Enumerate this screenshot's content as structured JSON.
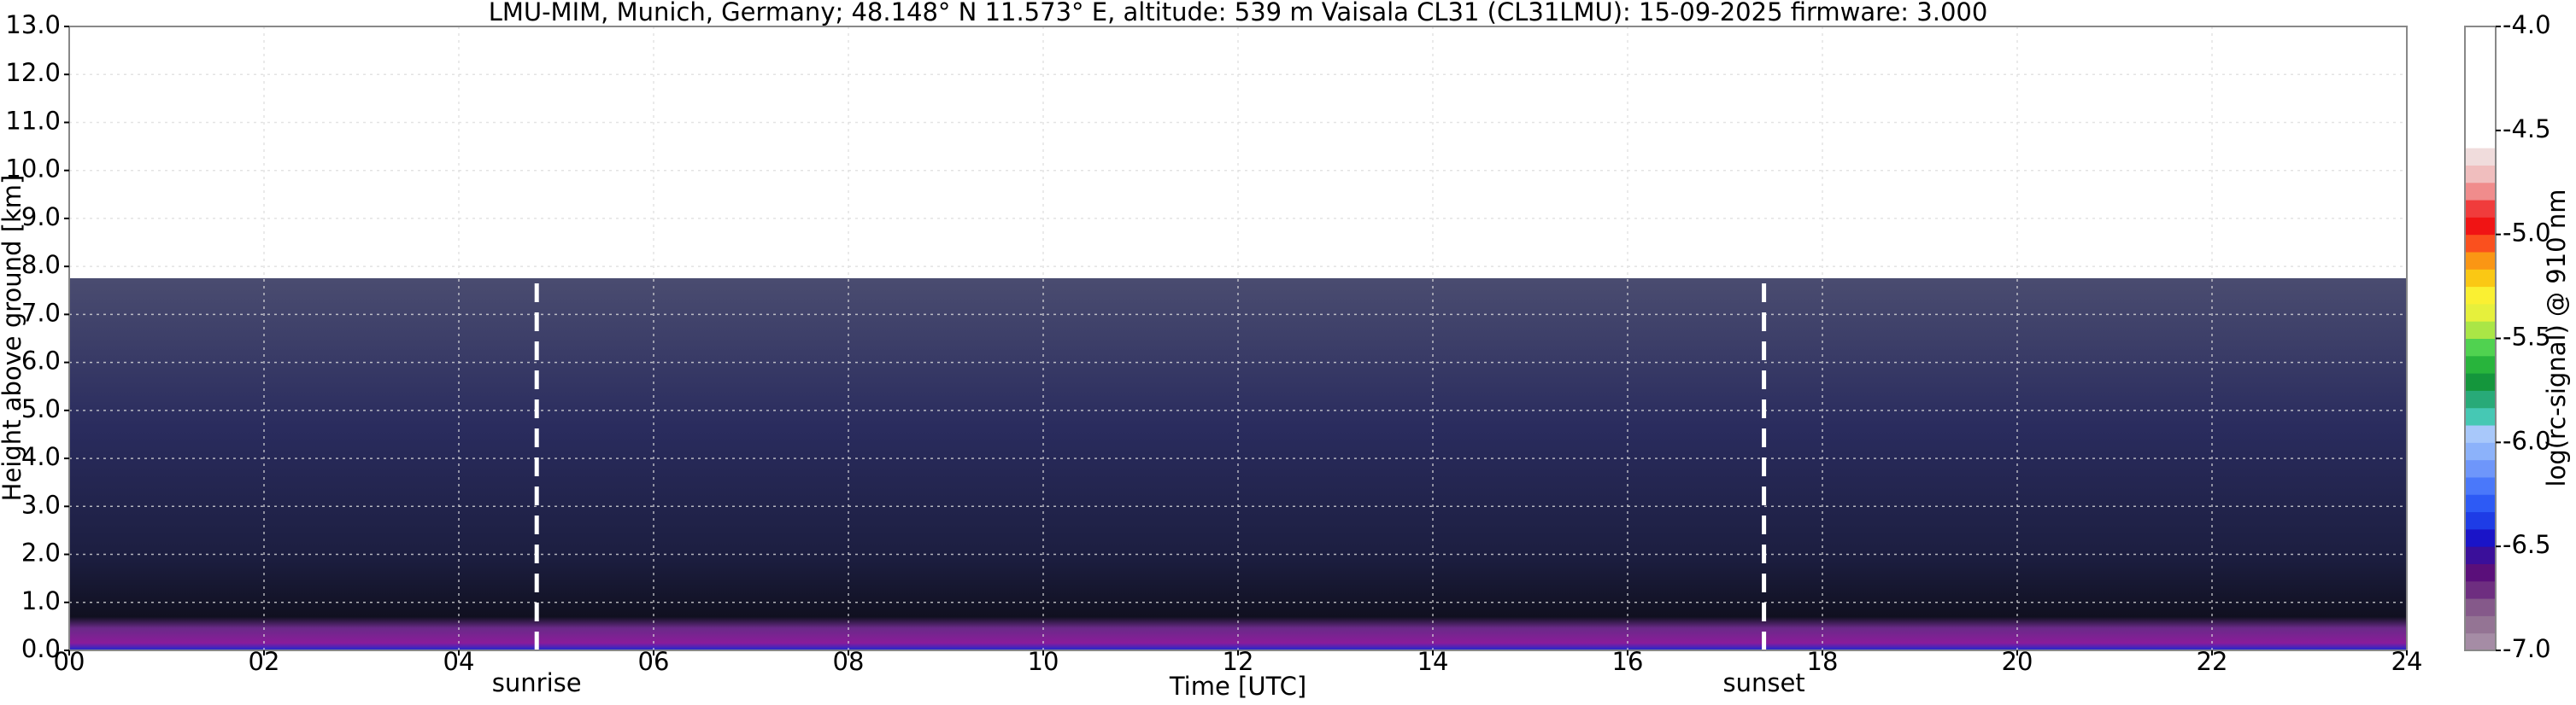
{
  "chart_data": {
    "type": "heatmap",
    "title": "LMU-MIM, Munich, Germany; 48.148° N 11.573° E, altitude: 539 m    Vaisala CL31 (CL31LMU): 15-09-2025    firmware: 3.000",
    "x_label": "Time [UTC]",
    "y_label": "Height above ground [km]",
    "xlim": [
      0,
      24
    ],
    "xticks": [
      {
        "value": 0,
        "label": "00"
      },
      {
        "value": 2,
        "label": "02"
      },
      {
        "value": 4,
        "label": "04"
      },
      {
        "value": 6,
        "label": "06"
      },
      {
        "value": 8,
        "label": "08"
      },
      {
        "value": 10,
        "label": "10"
      },
      {
        "value": 12,
        "label": "12"
      },
      {
        "value": 14,
        "label": "14"
      },
      {
        "value": 16,
        "label": "16"
      },
      {
        "value": 18,
        "label": "18"
      },
      {
        "value": 20,
        "label": "20"
      },
      {
        "value": 22,
        "label": "22"
      },
      {
        "value": 24,
        "label": "24"
      }
    ],
    "ylim": [
      0,
      13
    ],
    "yticks": [
      {
        "value": 0,
        "label": "0.0"
      },
      {
        "value": 1,
        "label": "1.0"
      },
      {
        "value": 2,
        "label": "2.0"
      },
      {
        "value": 3,
        "label": "3.0"
      },
      {
        "value": 4,
        "label": "4.0"
      },
      {
        "value": 5,
        "label": "5.0"
      },
      {
        "value": 6,
        "label": "6.0"
      },
      {
        "value": 7,
        "label": "7.0"
      },
      {
        "value": 8,
        "label": "8.0"
      },
      {
        "value": 9,
        "label": "9.0"
      },
      {
        "value": 10,
        "label": "10.0"
      },
      {
        "value": 11,
        "label": "11.0"
      },
      {
        "value": 12,
        "label": "12.0"
      },
      {
        "value": 13,
        "label": "13.0"
      }
    ],
    "grid": true,
    "annotations": [
      {
        "text": "sunrise",
        "x": 4.8
      },
      {
        "text": "sunset",
        "x": 17.4
      }
    ],
    "colorbar": {
      "label": "log(rc-signal) @ 910 nm",
      "lim": [
        -7,
        -4
      ],
      "ticks": [
        {
          "value": -4,
          "label": "-4.0"
        },
        {
          "value": -4.5,
          "label": "-4.5"
        },
        {
          "value": -5,
          "label": "-5.0"
        },
        {
          "value": -5.5,
          "label": "-5.5"
        },
        {
          "value": -6,
          "label": "-6.0"
        },
        {
          "value": -6.5,
          "label": "-6.5"
        },
        {
          "value": -7,
          "label": "-7.0"
        }
      ],
      "colors": [
        "#a58ca5",
        "#947494",
        "#85598a",
        "#6e2e80",
        "#5a0f7a",
        "#3a0f9a",
        "#1a14c8",
        "#1e3ce6",
        "#2d5af5",
        "#4a78fa",
        "#6e96fa",
        "#8cb2fa",
        "#a8c8fa",
        "#46c8b4",
        "#28aa78",
        "#14963c",
        "#28b43c",
        "#50d250",
        "#aae646",
        "#e6f03c",
        "#faf032",
        "#fac814",
        "#fa9614",
        "#fa501e",
        "#f01414",
        "#f03c3c",
        "#f08c8c",
        "#f0bebe",
        "#f0dcdc",
        "#ffffff",
        "#ffffff",
        "#ffffff",
        "#ffffff",
        "#ffffff",
        "#ffffff",
        "#ffffff"
      ]
    }
  }
}
